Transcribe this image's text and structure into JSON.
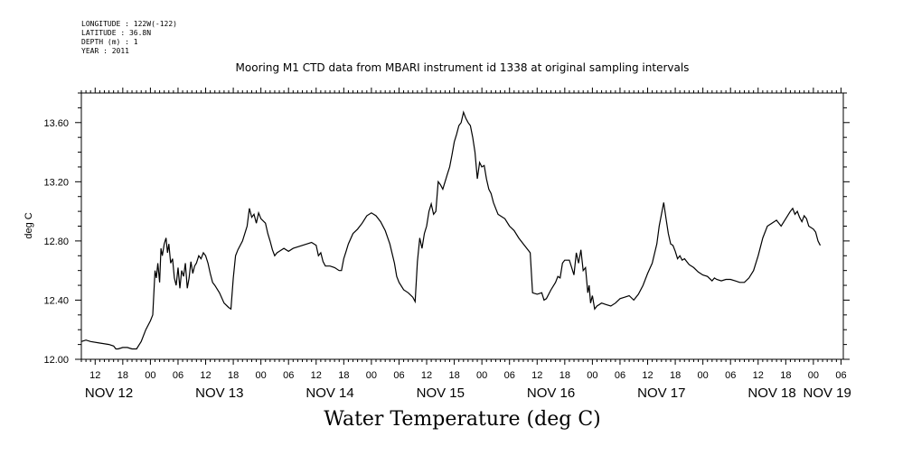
{
  "header": {
    "lines": [
      "LONGITUDE : 122W(-122)",
      "LATITUDE : 36.8N",
      "DEPTH (m) : 1",
      "YEAR : 2011"
    ]
  },
  "chart_data": {
    "type": "line",
    "title": "Mooring M1 CTD data from MBARI instrument id 1338 at original sampling intervals",
    "xlabel": "Water Temperature (deg C)",
    "ylabel": "deg C",
    "x_units": "hours since Nov 12 00:00, 2011",
    "xlim": [
      -9,
      156.5
    ],
    "ylim": [
      12.0,
      13.8
    ],
    "y_ticks": [
      12.0,
      12.4,
      12.8,
      13.2,
      13.6
    ],
    "y_tick_labels": [
      "12.00",
      "12.40",
      "12.80",
      "13.20",
      "13.60"
    ],
    "x_hour_ticks": [
      {
        "x": -6,
        "label": "12"
      },
      {
        "x": 0,
        "label": "18"
      },
      {
        "x": 6,
        "label": "00"
      },
      {
        "x": 12,
        "label": "06"
      },
      {
        "x": 18,
        "label": "12"
      },
      {
        "x": 24,
        "label": "18"
      },
      {
        "x": 30,
        "label": "00"
      },
      {
        "x": 36,
        "label": "06"
      },
      {
        "x": 42,
        "label": "12"
      },
      {
        "x": 48,
        "label": "18"
      },
      {
        "x": 54,
        "label": "00"
      },
      {
        "x": 60,
        "label": "06"
      },
      {
        "x": 66,
        "label": "12"
      },
      {
        "x": 72,
        "label": "18"
      },
      {
        "x": 78,
        "label": "00"
      },
      {
        "x": 84,
        "label": "06"
      },
      {
        "x": 90,
        "label": "12"
      },
      {
        "x": 96,
        "label": "18"
      },
      {
        "x": 102,
        "label": "00"
      },
      {
        "x": 108,
        "label": "06"
      },
      {
        "x": 114,
        "label": "12"
      },
      {
        "x": 120,
        "label": "18"
      },
      {
        "x": 126,
        "label": "00"
      },
      {
        "x": 132,
        "label": "06"
      },
      {
        "x": 138,
        "label": "12"
      },
      {
        "x": 144,
        "label": "18"
      },
      {
        "x": 150,
        "label": "00"
      },
      {
        "x": 156,
        "label": "06"
      }
    ],
    "x_day_labels": [
      {
        "x": -3,
        "label": "NOV 12"
      },
      {
        "x": 21,
        "label": "NOV 13"
      },
      {
        "x": 45,
        "label": "NOV 14"
      },
      {
        "x": 69,
        "label": "NOV 15"
      },
      {
        "x": 93,
        "label": "NOV 16"
      },
      {
        "x": 117,
        "label": "NOV 17"
      },
      {
        "x": 141,
        "label": "NOV 18"
      },
      {
        "x": 153,
        "label": "NOV 19"
      }
    ],
    "series": [
      {
        "points": [
          [
            -9,
            12.12
          ],
          [
            -8,
            12.13
          ],
          [
            -7,
            12.12
          ],
          [
            -5,
            12.11
          ],
          [
            -3,
            12.1
          ],
          [
            -2,
            12.09
          ],
          [
            -1.5,
            12.07
          ],
          [
            -1,
            12.07
          ],
          [
            0,
            12.08
          ],
          [
            1,
            12.08
          ],
          [
            2,
            12.07
          ],
          [
            3,
            12.07
          ],
          [
            4,
            12.12
          ],
          [
            5,
            12.2
          ],
          [
            6,
            12.26
          ],
          [
            6.5,
            12.3
          ],
          [
            7,
            12.6
          ],
          [
            7.3,
            12.55
          ],
          [
            7.6,
            12.65
          ],
          [
            8,
            12.52
          ],
          [
            8.3,
            12.75
          ],
          [
            8.6,
            12.7
          ],
          [
            9,
            12.78
          ],
          [
            9.4,
            12.82
          ],
          [
            9.7,
            12.72
          ],
          [
            10,
            12.78
          ],
          [
            10.4,
            12.65
          ],
          [
            10.8,
            12.68
          ],
          [
            11.2,
            12.55
          ],
          [
            11.6,
            12.5
          ],
          [
            12,
            12.62
          ],
          [
            12.4,
            12.48
          ],
          [
            12.8,
            12.6
          ],
          [
            13.2,
            12.56
          ],
          [
            13.6,
            12.65
          ],
          [
            14,
            12.48
          ],
          [
            14.4,
            12.55
          ],
          [
            14.8,
            12.66
          ],
          [
            15.2,
            12.58
          ],
          [
            15.6,
            12.63
          ],
          [
            16,
            12.65
          ],
          [
            16.5,
            12.7
          ],
          [
            17,
            12.68
          ],
          [
            17.5,
            12.72
          ],
          [
            18,
            12.7
          ],
          [
            18.5,
            12.65
          ],
          [
            19,
            12.58
          ],
          [
            19.5,
            12.52
          ],
          [
            20,
            12.5
          ],
          [
            21,
            12.45
          ],
          [
            22,
            12.38
          ],
          [
            23,
            12.35
          ],
          [
            23.5,
            12.34
          ],
          [
            24,
            12.55
          ],
          [
            24.5,
            12.7
          ],
          [
            25,
            12.74
          ],
          [
            26,
            12.8
          ],
          [
            27,
            12.9
          ],
          [
            27.5,
            13.02
          ],
          [
            28,
            12.96
          ],
          [
            28.5,
            12.98
          ],
          [
            29,
            12.92
          ],
          [
            29.5,
            12.99
          ],
          [
            30,
            12.95
          ],
          [
            31,
            12.92
          ],
          [
            31.5,
            12.85
          ],
          [
            32,
            12.8
          ],
          [
            32.5,
            12.74
          ],
          [
            33,
            12.7
          ],
          [
            33.5,
            12.72
          ],
          [
            34,
            12.73
          ],
          [
            35,
            12.75
          ],
          [
            36,
            12.73
          ],
          [
            37,
            12.75
          ],
          [
            38,
            12.76
          ],
          [
            39,
            12.77
          ],
          [
            40,
            12.78
          ],
          [
            41,
            12.79
          ],
          [
            42,
            12.77
          ],
          [
            42.5,
            12.7
          ],
          [
            43,
            12.72
          ],
          [
            43.5,
            12.66
          ],
          [
            44,
            12.63
          ],
          [
            45,
            12.63
          ],
          [
            46,
            12.62
          ],
          [
            47,
            12.6
          ],
          [
            47.5,
            12.6
          ],
          [
            48,
            12.68
          ],
          [
            48.5,
            12.73
          ],
          [
            49,
            12.78
          ],
          [
            50,
            12.85
          ],
          [
            51,
            12.88
          ],
          [
            52,
            12.92
          ],
          [
            53,
            12.97
          ],
          [
            54,
            12.99
          ],
          [
            55,
            12.97
          ],
          [
            56,
            12.93
          ],
          [
            57,
            12.87
          ],
          [
            58,
            12.78
          ],
          [
            59,
            12.65
          ],
          [
            59.5,
            12.56
          ],
          [
            60,
            12.52
          ],
          [
            61,
            12.47
          ],
          [
            62,
            12.45
          ],
          [
            63,
            12.42
          ],
          [
            63.5,
            12.39
          ],
          [
            64,
            12.66
          ],
          [
            64.5,
            12.82
          ],
          [
            65,
            12.75
          ],
          [
            65.5,
            12.85
          ],
          [
            66,
            12.9
          ],
          [
            66.5,
            13.0
          ],
          [
            67,
            13.05
          ],
          [
            67.5,
            12.98
          ],
          [
            68,
            13.0
          ],
          [
            68.5,
            13.2
          ],
          [
            69,
            13.18
          ],
          [
            69.5,
            13.15
          ],
          [
            70,
            13.2
          ],
          [
            70.5,
            13.25
          ],
          [
            71,
            13.3
          ],
          [
            71.5,
            13.38
          ],
          [
            72,
            13.47
          ],
          [
            72.5,
            13.52
          ],
          [
            73,
            13.58
          ],
          [
            73.5,
            13.6
          ],
          [
            74,
            13.67
          ],
          [
            74.5,
            13.63
          ],
          [
            75,
            13.6
          ],
          [
            75.5,
            13.58
          ],
          [
            76,
            13.5
          ],
          [
            76.5,
            13.4
          ],
          [
            77,
            13.22
          ],
          [
            77.5,
            13.33
          ],
          [
            78,
            13.3
          ],
          [
            78.5,
            13.31
          ],
          [
            79,
            13.22
          ],
          [
            79.5,
            13.15
          ],
          [
            80,
            13.12
          ],
          [
            80.5,
            13.06
          ],
          [
            81,
            13.02
          ],
          [
            81.5,
            12.98
          ],
          [
            82,
            12.97
          ],
          [
            83,
            12.95
          ],
          [
            84,
            12.9
          ],
          [
            85,
            12.87
          ],
          [
            86,
            12.82
          ],
          [
            87,
            12.78
          ],
          [
            88,
            12.74
          ],
          [
            88.5,
            12.72
          ],
          [
            89,
            12.45
          ],
          [
            90,
            12.44
          ],
          [
            91,
            12.45
          ],
          [
            91.5,
            12.4
          ],
          [
            92,
            12.41
          ],
          [
            93,
            12.47
          ],
          [
            94,
            12.52
          ],
          [
            94.5,
            12.56
          ],
          [
            95,
            12.55
          ],
          [
            95.5,
            12.65
          ],
          [
            96,
            12.67
          ],
          [
            97,
            12.67
          ],
          [
            97.5,
            12.62
          ],
          [
            98,
            12.57
          ],
          [
            98.5,
            12.72
          ],
          [
            99,
            12.65
          ],
          [
            99.5,
            12.74
          ],
          [
            100,
            12.6
          ],
          [
            100.5,
            12.62
          ],
          [
            101,
            12.45
          ],
          [
            101.3,
            12.5
          ],
          [
            101.6,
            12.38
          ],
          [
            102,
            12.43
          ],
          [
            102.5,
            12.34
          ],
          [
            103,
            12.36
          ],
          [
            104,
            12.38
          ],
          [
            105,
            12.37
          ],
          [
            106,
            12.36
          ],
          [
            107,
            12.38
          ],
          [
            108,
            12.41
          ],
          [
            109,
            12.42
          ],
          [
            110,
            12.43
          ],
          [
            111,
            12.4
          ],
          [
            112,
            12.44
          ],
          [
            113,
            12.5
          ],
          [
            114,
            12.58
          ],
          [
            115,
            12.65
          ],
          [
            116,
            12.78
          ],
          [
            116.5,
            12.9
          ],
          [
            117,
            12.98
          ],
          [
            117.5,
            13.06
          ],
          [
            118,
            12.95
          ],
          [
            118.5,
            12.85
          ],
          [
            119,
            12.78
          ],
          [
            119.5,
            12.77
          ],
          [
            120,
            12.73
          ],
          [
            120.5,
            12.68
          ],
          [
            121,
            12.7
          ],
          [
            121.5,
            12.67
          ],
          [
            122,
            12.68
          ],
          [
            123,
            12.64
          ],
          [
            124,
            12.62
          ],
          [
            125,
            12.59
          ],
          [
            126,
            12.57
          ],
          [
            127,
            12.56
          ],
          [
            128,
            12.53
          ],
          [
            128.5,
            12.55
          ],
          [
            129,
            12.54
          ],
          [
            130,
            12.53
          ],
          [
            131,
            12.54
          ],
          [
            132,
            12.54
          ],
          [
            133,
            12.53
          ],
          [
            134,
            12.52
          ],
          [
            135,
            12.52
          ],
          [
            136,
            12.55
          ],
          [
            137,
            12.6
          ],
          [
            138,
            12.7
          ],
          [
            139,
            12.82
          ],
          [
            140,
            12.9
          ],
          [
            141,
            12.92
          ],
          [
            142,
            12.94
          ],
          [
            143,
            12.9
          ],
          [
            144,
            12.95
          ],
          [
            145,
            13.0
          ],
          [
            145.5,
            13.02
          ],
          [
            146,
            12.98
          ],
          [
            146.5,
            13.0
          ],
          [
            147,
            12.96
          ],
          [
            147.5,
            12.93
          ],
          [
            148,
            12.97
          ],
          [
            148.5,
            12.95
          ],
          [
            149,
            12.9
          ],
          [
            150,
            12.88
          ],
          [
            150.5,
            12.86
          ],
          [
            151,
            12.8
          ],
          [
            151.5,
            12.77
          ]
        ]
      }
    ]
  }
}
